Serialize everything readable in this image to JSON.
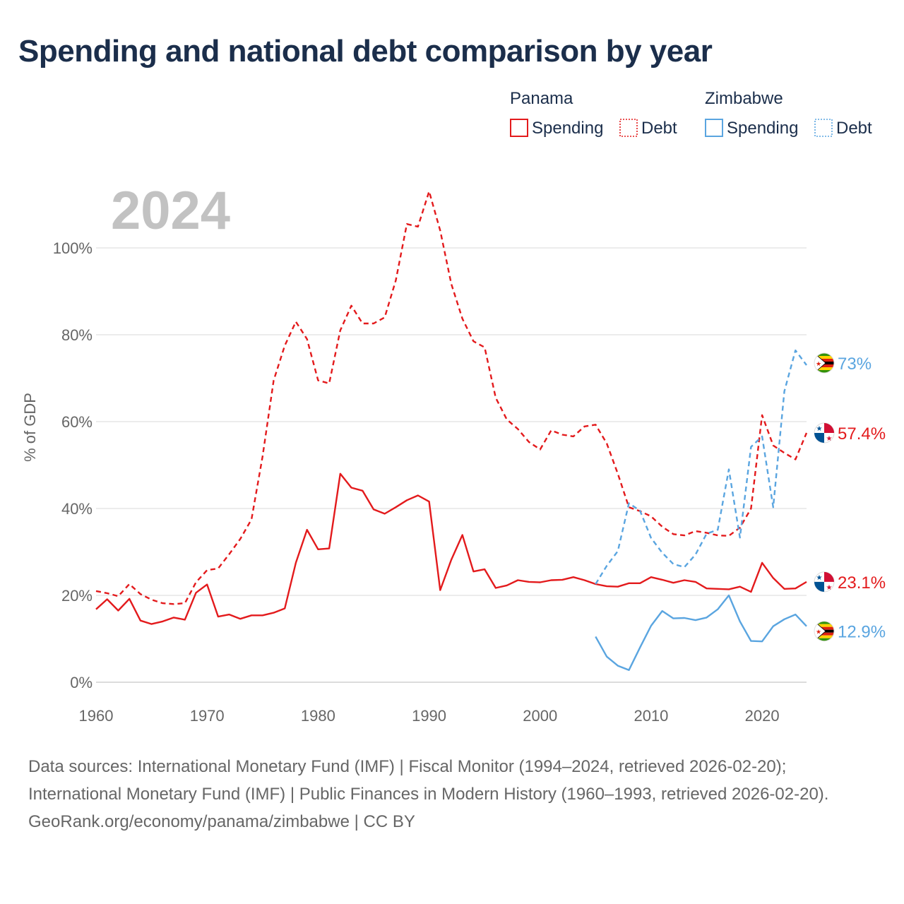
{
  "title": "Spending and national debt comparison by year",
  "chart_data": {
    "type": "line",
    "year_label": "2024",
    "ylabel": "% of GDP",
    "xlim": [
      1960,
      2024
    ],
    "ylim": [
      0,
      110
    ],
    "x_ticks": [
      1960,
      1970,
      1980,
      1990,
      2000,
      2010,
      2020
    ],
    "y_ticks": [
      0,
      20,
      40,
      60,
      80,
      100
    ],
    "y_tick_labels": [
      "0%",
      "20%",
      "40%",
      "60%",
      "80%",
      "100%"
    ],
    "x_tick_labels": [
      "1960",
      "1970",
      "1980",
      "1990",
      "2000",
      "2010",
      "2020"
    ],
    "grid": true,
    "legend": {
      "position": "top-right",
      "groups": [
        {
          "country": "Panama",
          "items": [
            "Spending",
            "Debt"
          ],
          "color": "#e31a1c"
        },
        {
          "country": "Zimbabwe",
          "items": [
            "Spending",
            "Debt"
          ],
          "color": "#5aa5e0"
        }
      ]
    },
    "series": [
      {
        "name": "Panama Debt",
        "country": "Panama",
        "measure": "Debt",
        "style": "dashed",
        "color": "#e31a1c",
        "start": 1960,
        "values": [
          21,
          20.5,
          19.8,
          22.6,
          20.3,
          19,
          18.2,
          18,
          18.2,
          23,
          25.8,
          26.2,
          29.5,
          33,
          37.5,
          52,
          69.5,
          77.5,
          83,
          79,
          69.5,
          68.8,
          81,
          86.7,
          82.6,
          82.6,
          84,
          92.5,
          105.5,
          104.9,
          113,
          104,
          91.7,
          83.7,
          78.5,
          77.1,
          65.5,
          60.5,
          58.3,
          55.3,
          53.6,
          58,
          57,
          56.6,
          58.9,
          59.3,
          55,
          48,
          40.3,
          39.4,
          38.2,
          35.8,
          34.1,
          33.8,
          34.8,
          34.4,
          33.8,
          33.7,
          35.6,
          40,
          61.5,
          54.5,
          52.8,
          51.3,
          57.4
        ],
        "end_label": "57.4%"
      },
      {
        "name": "Panama Spending",
        "country": "Panama",
        "measure": "Spending",
        "style": "solid",
        "color": "#e31a1c",
        "start": 1960,
        "values": [
          16.8,
          19.1,
          16.5,
          19.2,
          14.2,
          13.4,
          14,
          14.9,
          14.4,
          20.6,
          22.5,
          15.1,
          15.6,
          14.6,
          15.4,
          15.4,
          16,
          17,
          27.5,
          35.1,
          30.6,
          30.8,
          48,
          44.8,
          44.1,
          39.8,
          38.8,
          40.3,
          41.9,
          43,
          41.6,
          21.2,
          28.2,
          33.9,
          25.5,
          26,
          21.7,
          22.3,
          23.5,
          23.1,
          23,
          23.5,
          23.6,
          24.2,
          23.5,
          22.6,
          22.1,
          22,
          22.8,
          22.8,
          24.2,
          23.6,
          22.9,
          23.5,
          23.1,
          21.6,
          21.5,
          21.4,
          22,
          20.8,
          27.5,
          24,
          21.5,
          21.6,
          23.1
        ],
        "end_label": "23.1%"
      },
      {
        "name": "Zimbabwe Debt",
        "country": "Zimbabwe",
        "measure": "Debt",
        "style": "dashed",
        "color": "#5aa5e0",
        "start": 2005,
        "values": [
          22.6,
          26.8,
          30.2,
          41.2,
          39.5,
          33.2,
          29.8,
          27.2,
          26.5,
          29.4,
          34.2,
          35.1,
          49,
          33.3,
          54.2,
          56.6,
          40.3,
          67,
          76.4,
          73
        ],
        "end_label": "73%"
      },
      {
        "name": "Zimbabwe Spending",
        "country": "Zimbabwe",
        "measure": "Spending",
        "style": "solid",
        "color": "#5aa5e0",
        "start": 2005,
        "values": [
          10.5,
          5.9,
          3.8,
          2.8,
          8,
          13,
          16.4,
          14.7,
          14.8,
          14.3,
          14.9,
          16.8,
          20,
          14,
          9.5,
          9.4,
          12.9,
          14.5,
          15.6,
          12.9
        ],
        "end_label": "12.9%"
      }
    ]
  },
  "footer": {
    "sources": "Data sources: International Monetary Fund (IMF) | Fiscal Monitor (1994–2024, retrieved 2026-02-20); International Monetary Fund (IMF) | Public Finances in Modern History (1960–1993, retrieved 2026-02-20).",
    "credit": "GeoRank.org/economy/panama/zimbabwe | CC BY"
  }
}
